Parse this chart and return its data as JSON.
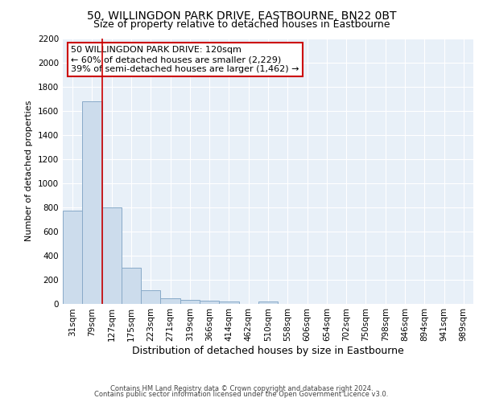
{
  "title": "50, WILLINGDON PARK DRIVE, EASTBOURNE, BN22 0BT",
  "subtitle": "Size of property relative to detached houses in Eastbourne",
  "xlabel": "Distribution of detached houses by size in Eastbourne",
  "ylabel": "Number of detached properties",
  "bin_labels": [
    "31sqm",
    "79sqm",
    "127sqm",
    "175sqm",
    "223sqm",
    "271sqm",
    "319sqm",
    "366sqm",
    "414sqm",
    "462sqm",
    "510sqm",
    "558sqm",
    "606sqm",
    "654sqm",
    "702sqm",
    "750sqm",
    "798sqm",
    "846sqm",
    "894sqm",
    "941sqm",
    "989sqm"
  ],
  "bar_heights": [
    770,
    1680,
    800,
    300,
    110,
    45,
    32,
    25,
    20,
    0,
    20,
    0,
    0,
    0,
    0,
    0,
    0,
    0,
    0,
    0,
    0
  ],
  "bar_color": "#ccdcec",
  "bar_edge_color": "#88aac8",
  "vline_color": "#cc0000",
  "annotation_text": "50 WILLINGDON PARK DRIVE: 120sqm\n← 60% of detached houses are smaller (2,229)\n39% of semi-detached houses are larger (1,462) →",
  "annotation_box_color": "#ffffff",
  "annotation_box_edge": "#cc0000",
  "ylim": [
    0,
    2200
  ],
  "yticks": [
    0,
    200,
    400,
    600,
    800,
    1000,
    1200,
    1400,
    1600,
    1800,
    2000,
    2200
  ],
  "footer1": "Contains HM Land Registry data © Crown copyright and database right 2024.",
  "footer2": "Contains public sector information licensed under the Open Government Licence v3.0.",
  "plot_bg_color": "#e8f0f8",
  "title_fontsize": 10,
  "subtitle_fontsize": 9,
  "ylabel_fontsize": 8,
  "xlabel_fontsize": 9,
  "tick_fontsize": 7.5,
  "footer_fontsize": 6,
  "annotation_fontsize": 8
}
